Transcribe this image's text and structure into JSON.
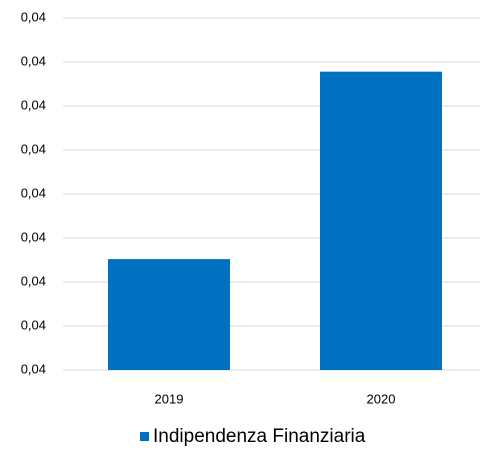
{
  "chart_data": {
    "type": "bar",
    "categories": [
      "2019",
      "2020"
    ],
    "series": [
      {
        "name": "Indipendenza Finanziaria",
        "color": "#0070c0",
        "values": [
          0.04126,
          0.04339
        ]
      }
    ],
    "ylim": [
      0.04,
      0.044
    ],
    "yticks": [
      {
        "value": 0.04,
        "label": "0,04"
      },
      {
        "value": 0.0405,
        "label": "0,04"
      },
      {
        "value": 0.041,
        "label": "0,04"
      },
      {
        "value": 0.0415,
        "label": "0,04"
      },
      {
        "value": 0.042,
        "label": "0,04"
      },
      {
        "value": 0.0425,
        "label": "0,04"
      },
      {
        "value": 0.043,
        "label": "0,04"
      },
      {
        "value": 0.0435,
        "label": "0,04"
      },
      {
        "value": 0.044,
        "label": "0,04"
      }
    ],
    "grid": true,
    "legend": "bottom"
  }
}
